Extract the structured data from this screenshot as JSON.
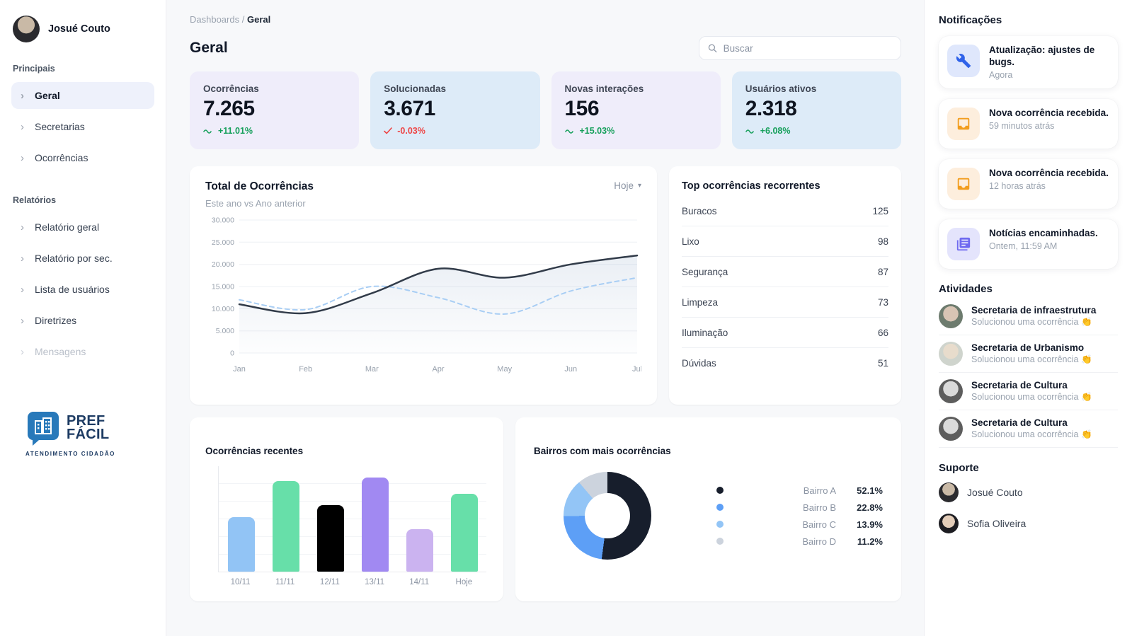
{
  "header": {
    "breadcrumb": [
      "Dashboards",
      "Geral"
    ],
    "breadcrumb_sep": "/",
    "title": "Geral",
    "search_placeholder": "Buscar"
  },
  "sidebar": {
    "user": {
      "name": "Josué Couto"
    },
    "chevron": "›",
    "sections": [
      {
        "label": "Principais",
        "items": [
          {
            "label": "Geral",
            "state": "active"
          },
          {
            "label": "Secretarias",
            "state": "normal"
          },
          {
            "label": "Ocorrências",
            "state": "normal"
          }
        ]
      },
      {
        "label": "Relatórios",
        "items": [
          {
            "label": "Relatório geral",
            "state": "normal"
          },
          {
            "label": "Relatório por sec.",
            "state": "normal"
          },
          {
            "label": "Lista de usuários",
            "state": "normal"
          },
          {
            "label": "Diretrizes",
            "state": "normal"
          },
          {
            "label": "Mensagens",
            "state": "disabled"
          }
        ]
      }
    ],
    "logo": {
      "line1": "PREF",
      "line2": "FÁCIL",
      "tagline": "ATENDIMENTO CIDADÃO",
      "brand_color": "#2879ba",
      "text_color": "#1d3b63"
    }
  },
  "stats": [
    {
      "label": "Ocorrências",
      "value": "7.265",
      "delta": "+11.01%",
      "trend": "up",
      "icon": "trend-wave",
      "bg": "#efedfa"
    },
    {
      "label": "Solucionadas",
      "value": "3.671",
      "delta": "-0.03%",
      "trend": "down",
      "icon": "check",
      "bg": "#ddebf8"
    },
    {
      "label": "Novas interações",
      "value": "156",
      "delta": "+15.03%",
      "trend": "up",
      "icon": "trend-wave",
      "bg": "#efedfa"
    },
    {
      "label": "Usuários ativos",
      "value": "2.318",
      "delta": "+6.08%",
      "trend": "up",
      "icon": "trend-wave",
      "bg": "#ddebf8"
    }
  ],
  "line_card": {
    "filter_label": "Hoje",
    "caret": "▾"
  },
  "notifications": {
    "title": "Notificações",
    "items": [
      {
        "icon": "wrench-icon",
        "chip_bg": "#dfe7fc",
        "icon_color": "#2f62e9",
        "title": "Atualização: ajustes de bugs.",
        "time": "Agora"
      },
      {
        "icon": "inbox-icon",
        "chip_bg": "#fdeedd",
        "icon_color": "#f29d1e",
        "title": "Nova ocorrência recebida.",
        "time": "59 minutos atrás"
      },
      {
        "icon": "inbox-icon",
        "chip_bg": "#fdeedd",
        "icon_color": "#f29d1e",
        "title": "Nova ocorrência recebida.",
        "time": "12 horas atrás"
      },
      {
        "icon": "news-icon",
        "chip_bg": "#e4e4fc",
        "icon_color": "#6f6af0",
        "title": "Notícias encaminhadas.",
        "time": "Ontem, 11:59 AM"
      }
    ]
  },
  "activities": {
    "title": "Atividades",
    "items": [
      {
        "name": "Secretaria de infraestrutura",
        "action": "Solucionou uma ocorrência",
        "emoji": "👏"
      },
      {
        "name": "Secretaria de Urbanismo",
        "action": "Solucionou uma ocorrência",
        "emoji": "👏"
      },
      {
        "name": "Secretaria de Cultura",
        "action": "Solucionou uma ocorrência",
        "emoji": "👏"
      },
      {
        "name": "Secretaria de Cultura",
        "action": "Solucionou uma ocorrência",
        "emoji": "👏"
      }
    ]
  },
  "support": {
    "title": "Suporte",
    "people": [
      {
        "name": "Josué Couto"
      },
      {
        "name": "Sofia Oliveira"
      }
    ]
  },
  "chart_data": [
    {
      "id": "total-ocorrencias",
      "type": "line",
      "title": "Total de Ocorrências",
      "subtitle": "Este ano vs Ano anterior",
      "x": [
        "Jan",
        "Feb",
        "Mar",
        "Apr",
        "May",
        "Jun",
        "Jul"
      ],
      "series": [
        {
          "name": "Este ano",
          "style": "solid",
          "color": "#313b49",
          "fill": true,
          "values": [
            11000,
            9000,
            13500,
            19000,
            17000,
            20000,
            22000
          ]
        },
        {
          "name": "Ano anterior",
          "style": "dashed",
          "color": "#a9cef4",
          "fill": false,
          "values": [
            12000,
            9800,
            15000,
            12500,
            8800,
            14000,
            17000
          ]
        }
      ],
      "ylim": [
        0,
        30000
      ],
      "yticks": [
        "30.000",
        "25.000",
        "20.000",
        "15.000",
        "10.000",
        "5.000",
        "0"
      ],
      "grid": true,
      "legend_position": "none"
    },
    {
      "id": "ocorrencias-recentes",
      "type": "bar",
      "title": "Ocorrências recentes",
      "categories": [
        "10/11",
        "11/11",
        "12/11",
        "13/11",
        "14/11",
        "Hoje"
      ],
      "values": [
        52,
        86,
        63,
        89,
        40,
        74
      ],
      "colors": [
        "#92c4f5",
        "#67dfa9",
        "#000000",
        "#a189f2",
        "#cbb3f0",
        "#67dfa9"
      ],
      "ylim": [
        0,
        100
      ],
      "grid": true
    },
    {
      "id": "bairros-ocorrencias",
      "type": "pie",
      "title": "Bairros com mais ocorrências",
      "labels": [
        "Bairro A",
        "Bairro B",
        "Bairro C",
        "Bairro D"
      ],
      "values": [
        52.1,
        22.8,
        13.9,
        11.2
      ],
      "value_labels": [
        "52.1%",
        "22.8%",
        "13.9%",
        "11.2%"
      ],
      "colors": [
        "#171e2c",
        "#5d9ff6",
        "#93c5f6",
        "#ccd3dd"
      ],
      "donut": true,
      "legend_position": "right"
    },
    {
      "id": "top-recorrentes",
      "type": "table",
      "title": "Top ocorrências recorrentes",
      "rows": [
        [
          "Buracos",
          125
        ],
        [
          "Lixo",
          98
        ],
        [
          "Segurança",
          87
        ],
        [
          "Limpeza",
          73
        ],
        [
          "Iluminação",
          66
        ],
        [
          "Dúvidas",
          51
        ]
      ]
    }
  ]
}
